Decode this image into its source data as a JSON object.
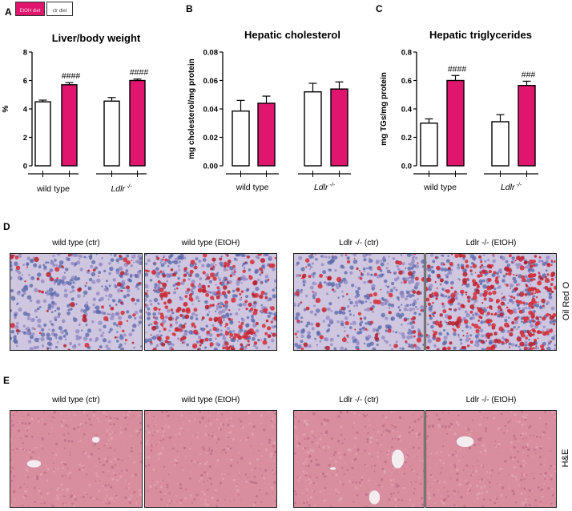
{
  "panels": {
    "A": "A",
    "B": "B",
    "C": "C",
    "D": "D",
    "E": "E"
  },
  "legend": {
    "etoh": {
      "label": "EtOH diet",
      "color": "#e0156e"
    },
    "ctr": {
      "label": "ctr diet",
      "color": "#ffffff"
    }
  },
  "colors": {
    "etoh": "#e0156e",
    "ctr": "#ffffff"
  },
  "chart_data": [
    {
      "type": "bar",
      "title": "Liver/body weight",
      "ylabel": "%",
      "ylim": [
        0,
        8
      ],
      "yticks": [
        "0",
        "2",
        "4",
        "6",
        "8"
      ],
      "groups": [
        "wild type",
        "Ldlr -/-"
      ],
      "series": [
        {
          "name": "ctr diet",
          "values": [
            4.5,
            4.55
          ],
          "errors": [
            0.12,
            0.25
          ]
        },
        {
          "name": "EtOH diet",
          "values": [
            5.7,
            6.0
          ],
          "errors": [
            0.15,
            0.1
          ]
        }
      ],
      "annotations": [
        "####",
        "####"
      ]
    },
    {
      "type": "bar",
      "title": "Hepatic cholesterol",
      "ylabel": "mg cholesterol/mg protein",
      "ylim": [
        0,
        0.08
      ],
      "yticks": [
        "0.00",
        "0.02",
        "0.04",
        "0.06",
        "0.08"
      ],
      "groups": [
        "wild type",
        "Ldlr -/-"
      ],
      "series": [
        {
          "name": "ctr diet",
          "values": [
            0.0385,
            0.052
          ],
          "errors": [
            0.0075,
            0.006
          ]
        },
        {
          "name": "EtOH diet",
          "values": [
            0.044,
            0.054
          ],
          "errors": [
            0.005,
            0.005
          ]
        }
      ],
      "annotations": [
        "",
        ""
      ]
    },
    {
      "type": "bar",
      "title": "Hepatic triglycerides",
      "ylabel": "mg TGs/mg protein",
      "ylim": [
        0,
        0.8
      ],
      "yticks": [
        "0.0",
        "0.2",
        "0.4",
        "0.6",
        "0.8"
      ],
      "groups": [
        "wild type",
        "Ldlr -/-"
      ],
      "series": [
        {
          "name": "ctr diet",
          "values": [
            0.3,
            0.31
          ],
          "errors": [
            0.03,
            0.05
          ]
        },
        {
          "name": "EtOH diet",
          "values": [
            0.6,
            0.565
          ],
          "errors": [
            0.035,
            0.03
          ]
        }
      ],
      "annotations": [
        "####",
        "###"
      ]
    }
  ],
  "micrographs": {
    "D": {
      "stain": "Oil Red O",
      "labels": [
        "wild type (ctr)",
        "wild type (EtOH)",
        "Ldlr -/- (ctr)",
        "Ldlr -/- (EtOH)"
      ]
    },
    "E": {
      "stain": "H&E",
      "labels": [
        "wild type (ctr)",
        "wild type (EtOH)",
        "Ldlr -/- (ctr)",
        "Ldlr -/- (EtOH)"
      ]
    }
  }
}
